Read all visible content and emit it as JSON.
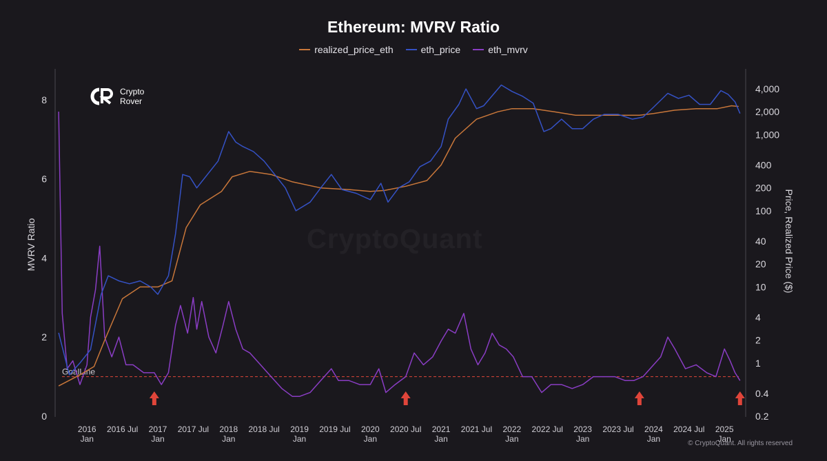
{
  "chart_data": {
    "type": "line",
    "title": "Ethereum: MVRV Ratio",
    "legend_placement": "top-center",
    "left_axis_label": "MVRV Ratio",
    "right_axis_label": "Price, Realized Price ($)",
    "left_ticks": [
      "0",
      "2",
      "4",
      "6",
      "8"
    ],
    "right_ticks": [
      "0.2",
      "0.4",
      "1",
      "2",
      "4",
      "10",
      "20",
      "40",
      "100",
      "200",
      "400",
      "1,000",
      "2,000",
      "4,000"
    ],
    "right_scale": "log",
    "x_ticks": [
      {
        "top": "2016",
        "bottom": "Jan"
      },
      {
        "top": "2016 Jul",
        "bottom": ""
      },
      {
        "top": "2017",
        "bottom": "Jan"
      },
      {
        "top": "2017 Jul",
        "bottom": ""
      },
      {
        "top": "2018",
        "bottom": "Jan"
      },
      {
        "top": "2018 Jul",
        "bottom": ""
      },
      {
        "top": "2019",
        "bottom": "Jan"
      },
      {
        "top": "2019 Jul",
        "bottom": ""
      },
      {
        "top": "2020",
        "bottom": "Jan"
      },
      {
        "top": "2020 Jul",
        "bottom": ""
      },
      {
        "top": "2021",
        "bottom": "Jan"
      },
      {
        "top": "2021 Jul",
        "bottom": ""
      },
      {
        "top": "2022",
        "bottom": "Jan"
      },
      {
        "top": "2022 Jul",
        "bottom": ""
      },
      {
        "top": "2023",
        "bottom": "Jan"
      },
      {
        "top": "2023 Jul",
        "bottom": ""
      },
      {
        "top": "2024",
        "bottom": "Jan"
      },
      {
        "top": "2024 Jul",
        "bottom": ""
      },
      {
        "top": "2025",
        "bottom": "Jan"
      }
    ],
    "goal_line": {
      "label": "GoalLine",
      "value": 1.0,
      "color": "#e0453a"
    },
    "series": [
      {
        "name": "realized_price_eth",
        "axis": "right",
        "color": "#c9773a",
        "x": [
          2015.6,
          2015.9,
          2016.1,
          2016.25,
          2016.5,
          2016.75,
          2017.0,
          2017.2,
          2017.4,
          2017.6,
          2017.9,
          2018.05,
          2018.3,
          2018.6,
          2018.9,
          2019.3,
          2019.7,
          2020.0,
          2020.2,
          2020.5,
          2020.8,
          2021.0,
          2021.2,
          2021.5,
          2021.8,
          2022.0,
          2022.3,
          2022.6,
          2022.9,
          2023.2,
          2023.5,
          2023.8,
          2024.0,
          2024.3,
          2024.6,
          2024.9,
          2025.1,
          2025.2
        ],
        "y": [
          0.5,
          0.7,
          0.9,
          2.0,
          7.0,
          10.0,
          10.0,
          12.0,
          60.0,
          120.0,
          180.0,
          280.0,
          330.0,
          300.0,
          240.0,
          200.0,
          190.0,
          180.0,
          185.0,
          210.0,
          250.0,
          400.0,
          900.0,
          1600.0,
          2000.0,
          2200.0,
          2200.0,
          2000.0,
          1800.0,
          1800.0,
          1800.0,
          1800.0,
          1900.0,
          2100.0,
          2200.0,
          2200.0,
          2400.0,
          2350.0
        ]
      },
      {
        "name": "eth_price",
        "axis": "right",
        "color": "#3552c6",
        "x": [
          2015.6,
          2015.75,
          2015.9,
          2016.05,
          2016.2,
          2016.3,
          2016.45,
          2016.6,
          2016.75,
          2016.9,
          2017.0,
          2017.15,
          2017.25,
          2017.35,
          2017.45,
          2017.55,
          2017.7,
          2017.85,
          2018.0,
          2018.1,
          2018.2,
          2018.35,
          2018.5,
          2018.65,
          2018.8,
          2018.95,
          2019.15,
          2019.3,
          2019.45,
          2019.6,
          2019.8,
          2020.0,
          2020.15,
          2020.25,
          2020.4,
          2020.55,
          2020.7,
          2020.85,
          2021.0,
          2021.1,
          2021.25,
          2021.35,
          2021.5,
          2021.6,
          2021.75,
          2021.85,
          2022.0,
          2022.15,
          2022.3,
          2022.45,
          2022.55,
          2022.7,
          2022.85,
          2023.0,
          2023.15,
          2023.3,
          2023.5,
          2023.7,
          2023.85,
          2024.0,
          2024.2,
          2024.35,
          2024.5,
          2024.65,
          2024.8,
          2024.95,
          2025.05,
          2025.15,
          2025.22
        ],
        "y": [
          2.5,
          0.7,
          1.0,
          1.5,
          8.0,
          14.0,
          12.0,
          11.0,
          12.0,
          10.0,
          8.0,
          14.0,
          50.0,
          300.0,
          280.0,
          200.0,
          300.0,
          450.0,
          1100.0,
          800.0,
          700.0,
          600.0,
          450.0,
          300.0,
          200.0,
          100.0,
          130.0,
          200.0,
          300.0,
          190.0,
          170.0,
          140.0,
          230.0,
          130.0,
          200.0,
          240.0,
          380.0,
          450.0,
          700.0,
          1600.0,
          2500.0,
          4000.0,
          2200.0,
          2400.0,
          3500.0,
          4500.0,
          3700.0,
          3200.0,
          2600.0,
          1100.0,
          1200.0,
          1600.0,
          1200.0,
          1200.0,
          1600.0,
          1850.0,
          1850.0,
          1600.0,
          1700.0,
          2300.0,
          3500.0,
          3000.0,
          3300.0,
          2500.0,
          2500.0,
          3800.0,
          3400.0,
          2700.0,
          1900.0
        ]
      },
      {
        "name": "eth_mvrv",
        "axis": "left",
        "color": "#8a3dc4",
        "x": [
          2015.6,
          2015.65,
          2015.72,
          2015.8,
          2015.9,
          2016.0,
          2016.05,
          2016.12,
          2016.18,
          2016.25,
          2016.35,
          2016.45,
          2016.55,
          2016.65,
          2016.8,
          2016.95,
          2017.05,
          2017.15,
          2017.25,
          2017.32,
          2017.42,
          2017.5,
          2017.55,
          2017.62,
          2017.72,
          2017.82,
          2017.92,
          2018.0,
          2018.1,
          2018.2,
          2018.3,
          2018.45,
          2018.6,
          2018.75,
          2018.9,
          2019.0,
          2019.15,
          2019.3,
          2019.45,
          2019.55,
          2019.7,
          2019.85,
          2020.0,
          2020.12,
          2020.22,
          2020.35,
          2020.5,
          2020.62,
          2020.75,
          2020.88,
          2021.0,
          2021.1,
          2021.2,
          2021.32,
          2021.42,
          2021.52,
          2021.62,
          2021.72,
          2021.82,
          2021.92,
          2022.02,
          2022.15,
          2022.28,
          2022.42,
          2022.55,
          2022.7,
          2022.85,
          2023.0,
          2023.15,
          2023.3,
          2023.45,
          2023.6,
          2023.72,
          2023.85,
          2024.0,
          2024.1,
          2024.2,
          2024.3,
          2024.45,
          2024.6,
          2024.75,
          2024.88,
          2025.0,
          2025.08,
          2025.15,
          2025.22
        ],
        "y": [
          7.7,
          2.6,
          1.2,
          1.4,
          0.8,
          1.3,
          2.5,
          3.2,
          4.3,
          2.0,
          1.5,
          2.0,
          1.3,
          1.3,
          1.1,
          1.1,
          0.8,
          1.1,
          2.3,
          2.8,
          2.1,
          3.0,
          2.2,
          2.9,
          2.0,
          1.6,
          2.3,
          2.9,
          2.2,
          1.7,
          1.6,
          1.3,
          1.0,
          0.7,
          0.5,
          0.5,
          0.6,
          0.9,
          1.2,
          0.9,
          0.9,
          0.8,
          0.8,
          1.2,
          0.6,
          0.8,
          1.0,
          1.6,
          1.3,
          1.5,
          1.9,
          2.2,
          2.1,
          2.6,
          1.7,
          1.3,
          1.6,
          2.1,
          1.8,
          1.7,
          1.5,
          1.0,
          1.0,
          0.6,
          0.8,
          0.8,
          0.7,
          0.8,
          1.0,
          1.0,
          1.0,
          0.9,
          0.9,
          1.0,
          1.3,
          1.5,
          2.0,
          1.7,
          1.2,
          1.3,
          1.1,
          1.0,
          1.7,
          1.4,
          1.1,
          0.9
        ]
      }
    ],
    "markers": [
      {
        "x": 2016.95,
        "label": "up-arrow",
        "color": "#e0453a"
      },
      {
        "x": 2020.5,
        "label": "up-arrow",
        "color": "#e0453a"
      },
      {
        "x": 2023.8,
        "label": "up-arrow",
        "color": "#e0453a"
      },
      {
        "x": 2025.22,
        "label": "up-arrow",
        "color": "#e0453a"
      }
    ]
  },
  "brand": {
    "line1": "Crypto",
    "line2": "Rover",
    "icon": "crypto-rover-logo"
  },
  "watermark": "CryptoQuant",
  "copyright": "© CryptoQuant. All rights reserved"
}
